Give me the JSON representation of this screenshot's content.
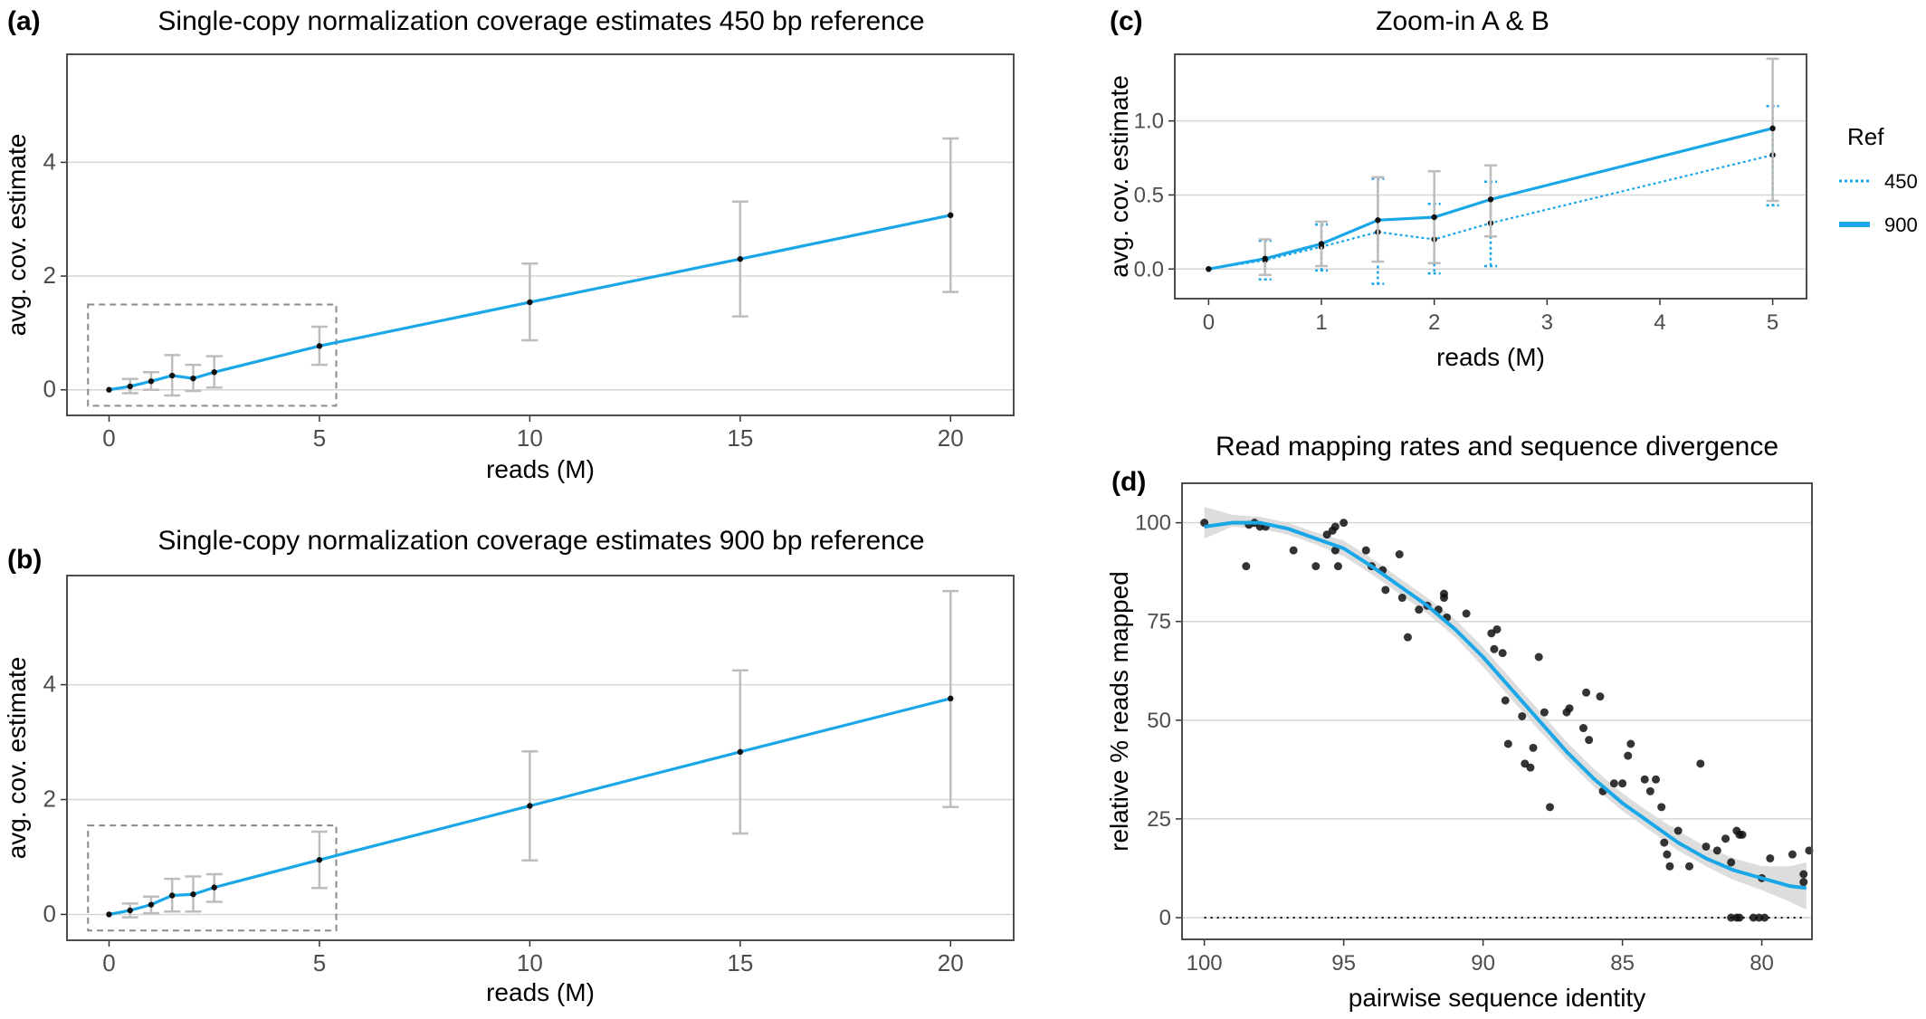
{
  "colors": {
    "series": "#1aa7e8",
    "errorbar": "#bdbdbd",
    "grid": "#d6d6d6",
    "panel_border": "#4d4d4d",
    "points": "#111111",
    "ribbon": "#d9d9d9",
    "zoom_box": "#8a8a8a"
  },
  "chart_data": [
    {
      "panel_label": "(a)",
      "type": "line",
      "title": "Single-copy normalization coverage estimates 450 bp reference",
      "xlabel": "reads (M)",
      "ylabel": "avg. cov. estimate",
      "xlim": [
        -1,
        21.5
      ],
      "ylim": [
        -0.45,
        5.9
      ],
      "xticks": [
        0,
        5,
        10,
        15,
        20
      ],
      "yticks": [
        0,
        2,
        4
      ],
      "grid": "horizontal",
      "zoom_box": {
        "x": [
          -0.5,
          5.4
        ],
        "y": [
          -0.28,
          1.5
        ]
      },
      "series": [
        {
          "x": [
            0,
            0.5,
            1,
            1.5,
            2,
            2.5,
            5,
            10,
            15,
            20
          ],
          "y": [
            0,
            0.06,
            0.15,
            0.25,
            0.2,
            0.31,
            0.77,
            1.54,
            2.3,
            3.07
          ],
          "err_low": [
            0,
            -0.06,
            0.0,
            -0.1,
            -0.02,
            0.04,
            0.44,
            0.87,
            1.29,
            1.72
          ],
          "err_high": [
            0,
            0.19,
            0.31,
            0.61,
            0.44,
            0.59,
            1.11,
            2.22,
            3.31,
            4.42
          ]
        }
      ]
    },
    {
      "panel_label": "(b)",
      "type": "line",
      "title": "Single-copy normalization coverage estimates 900 bp reference",
      "xlabel": "reads (M)",
      "ylabel": "avg. cov. estimate",
      "xlim": [
        -1,
        21.5
      ],
      "ylim": [
        -0.45,
        5.9
      ],
      "xticks": [
        0,
        5,
        10,
        15,
        20
      ],
      "yticks": [
        0,
        2,
        4
      ],
      "grid": "horizontal",
      "zoom_box": {
        "x": [
          -0.5,
          5.4
        ],
        "y": [
          -0.28,
          1.55
        ]
      },
      "series": [
        {
          "x": [
            0,
            0.5,
            1,
            1.5,
            2,
            2.5,
            5,
            10,
            15,
            20
          ],
          "y": [
            0,
            0.07,
            0.17,
            0.33,
            0.35,
            0.47,
            0.95,
            1.89,
            2.83,
            3.76
          ],
          "err_low": [
            0,
            -0.05,
            0.02,
            0.05,
            0.05,
            0.22,
            0.46,
            0.94,
            1.41,
            1.87
          ],
          "err_high": [
            0,
            0.19,
            0.31,
            0.62,
            0.66,
            0.7,
            1.44,
            2.84,
            4.25,
            5.63
          ]
        }
      ]
    },
    {
      "panel_label": "(c)",
      "type": "line",
      "title": "Zoom-in A & B",
      "xlabel": "reads (M)",
      "ylabel": "avg. cov. estimate",
      "xlim": [
        -0.3,
        5.3
      ],
      "ylim": [
        -0.2,
        1.45
      ],
      "xticks": [
        0,
        1,
        2,
        3,
        4,
        5
      ],
      "yticks": [
        0.0,
        0.5,
        1.0
      ],
      "ytick_labels": [
        "0.0",
        "0.5",
        "1.0"
      ],
      "grid": "horizontal",
      "legend": {
        "title": "Ref",
        "position": "right"
      },
      "series": [
        {
          "name": "450",
          "style": "dotted",
          "x": [
            0,
            0.5,
            1,
            1.5,
            2,
            2.5,
            5
          ],
          "y": [
            0,
            0.06,
            0.15,
            0.25,
            0.2,
            0.31,
            0.77
          ],
          "err_low": [
            0,
            -0.07,
            -0.01,
            -0.1,
            -0.03,
            0.02,
            0.43
          ],
          "err_high": [
            0,
            0.19,
            0.3,
            0.61,
            0.44,
            0.59,
            1.1
          ]
        },
        {
          "name": "900",
          "style": "solid",
          "x": [
            0,
            0.5,
            1,
            1.5,
            2,
            2.5,
            5
          ],
          "y": [
            0,
            0.07,
            0.17,
            0.33,
            0.35,
            0.47,
            0.95
          ],
          "err_low": [
            0,
            -0.04,
            0.02,
            0.05,
            0.04,
            0.22,
            0.46
          ],
          "err_high": [
            0,
            0.2,
            0.32,
            0.62,
            0.66,
            0.7,
            1.42
          ]
        }
      ]
    },
    {
      "panel_label": "(d)",
      "type": "scatter",
      "title": "Read mapping rates and sequence divergence",
      "xlabel": "pairwise sequence identity",
      "ylabel": "relative % reads mapped",
      "xlim": [
        100.8,
        78.2
      ],
      "ylim": [
        -5.5,
        110
      ],
      "xticks": [
        100,
        95,
        90,
        85,
        80
      ],
      "yticks": [
        0,
        25,
        50,
        75,
        100
      ],
      "x_reversed": true,
      "grid": "horizontal",
      "reference_line_y": 0,
      "points": [
        [
          100,
          100
        ],
        [
          98.4,
          99.5
        ],
        [
          98.2,
          100
        ],
        [
          98.0,
          99
        ],
        [
          97.8,
          99
        ],
        [
          98.5,
          89
        ],
        [
          96.8,
          93
        ],
        [
          96.0,
          89
        ],
        [
          95.6,
          97
        ],
        [
          95.4,
          98
        ],
        [
          95.3,
          99
        ],
        [
          95.2,
          89
        ],
        [
          95.0,
          100
        ],
        [
          95.3,
          93
        ],
        [
          94.2,
          93
        ],
        [
          94.0,
          89
        ],
        [
          93.6,
          88
        ],
        [
          93.5,
          83
        ],
        [
          93.0,
          92
        ],
        [
          92.9,
          81
        ],
        [
          92.7,
          71
        ],
        [
          92.3,
          78
        ],
        [
          92.0,
          79
        ],
        [
          91.6,
          78
        ],
        [
          91.4,
          82
        ],
        [
          91.4,
          81
        ],
        [
          91.3,
          76
        ],
        [
          90.6,
          77
        ],
        [
          89.7,
          72
        ],
        [
          89.6,
          68
        ],
        [
          89.5,
          73
        ],
        [
          89.3,
          67
        ],
        [
          89.2,
          55
        ],
        [
          89.1,
          44
        ],
        [
          88.6,
          51
        ],
        [
          88.5,
          39
        ],
        [
          88.3,
          38
        ],
        [
          88.2,
          43
        ],
        [
          88.0,
          66
        ],
        [
          87.8,
          52
        ],
        [
          87.6,
          28
        ],
        [
          87.0,
          52
        ],
        [
          86.9,
          53
        ],
        [
          86.4,
          48
        ],
        [
          86.3,
          57
        ],
        [
          86.2,
          45
        ],
        [
          85.8,
          56
        ],
        [
          85.7,
          32
        ],
        [
          85.3,
          34
        ],
        [
          85.0,
          34
        ],
        [
          84.8,
          41
        ],
        [
          84.7,
          44
        ],
        [
          84.2,
          35
        ],
        [
          84.0,
          32
        ],
        [
          83.8,
          35
        ],
        [
          83.6,
          28
        ],
        [
          83.5,
          19
        ],
        [
          83.4,
          16
        ],
        [
          83.3,
          13
        ],
        [
          83.0,
          22
        ],
        [
          82.6,
          13
        ],
        [
          82.2,
          39
        ],
        [
          82.0,
          18
        ],
        [
          81.6,
          17
        ],
        [
          81.3,
          20
        ],
        [
          81.1,
          14
        ],
        [
          80.9,
          22
        ],
        [
          80.8,
          21
        ],
        [
          80.7,
          21
        ],
        [
          81.1,
          0
        ],
        [
          80.9,
          0
        ],
        [
          80.8,
          0
        ],
        [
          80.3,
          0
        ],
        [
          80.1,
          0
        ],
        [
          79.9,
          0
        ],
        [
          79.7,
          15
        ],
        [
          78.9,
          16
        ],
        [
          78.5,
          9
        ],
        [
          78.5,
          11
        ],
        [
          78.3,
          17
        ],
        [
          80.0,
          10
        ]
      ],
      "smooth_fit": {
        "x": [
          100.0,
          99.0,
          98.0,
          97.0,
          96.0,
          95.0,
          94.0,
          93.0,
          92.0,
          91.0,
          90.0,
          89.0,
          88.0,
          87.0,
          86.0,
          85.0,
          84.0,
          83.0,
          82.0,
          81.0,
          80.0,
          79.0,
          78.4
        ],
        "y": [
          99,
          100,
          100,
          98.5,
          96,
          93.5,
          89,
          84,
          79,
          73,
          66,
          58,
          50,
          42,
          35,
          29,
          24,
          19,
          15,
          12,
          10,
          8,
          7.5
        ],
        "band_low": [
          96,
          99,
          98.5,
          97,
          94.5,
          91.5,
          87,
          82,
          77,
          71,
          63.5,
          55.5,
          47.5,
          40,
          33,
          27,
          22,
          17,
          13,
          9.5,
          7,
          4,
          2
        ],
        "band_high": [
          104,
          102,
          101.5,
          100,
          97.5,
          95.5,
          91,
          86,
          81,
          75.5,
          68.5,
          60.5,
          52.5,
          44.5,
          37.5,
          31.5,
          26.5,
          22,
          18,
          15,
          13,
          13,
          14
        ]
      }
    }
  ]
}
